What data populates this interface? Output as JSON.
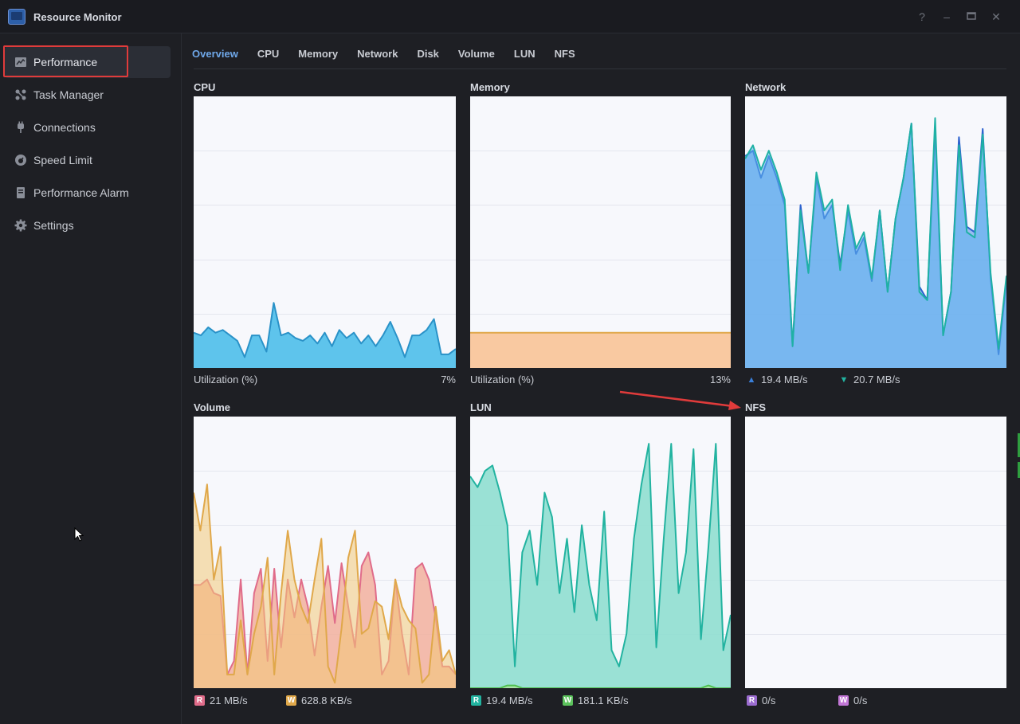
{
  "window": {
    "title": "Resource Monitor",
    "help_icon": "help-icon",
    "minimize_icon": "minimize-icon",
    "maximize_icon": "maximize-icon",
    "close_icon": "close-icon"
  },
  "sidebar": {
    "items": [
      {
        "label": "Performance",
        "icon": "performance-icon",
        "active": true
      },
      {
        "label": "Task Manager",
        "icon": "task-manager-icon"
      },
      {
        "label": "Connections",
        "icon": "connections-icon"
      },
      {
        "label": "Speed Limit",
        "icon": "speed-limit-icon"
      },
      {
        "label": "Performance Alarm",
        "icon": "alarm-icon"
      },
      {
        "label": "Settings",
        "icon": "gear-icon"
      }
    ]
  },
  "tabs": [
    "Overview",
    "CPU",
    "Memory",
    "Network",
    "Disk",
    "Volume",
    "LUN",
    "NFS"
  ],
  "panels": {
    "cpu": {
      "title": "CPU",
      "caption": "Utilization  (%)",
      "value": "7%"
    },
    "memory": {
      "title": "Memory",
      "caption": "Utilization  (%)",
      "value": "13%"
    },
    "network": {
      "title": "Network",
      "up": "19.4 MB/s",
      "down": "20.7 MB/s"
    },
    "volume": {
      "title": "Volume",
      "r_badge": "R",
      "r": "21 MB/s",
      "w_badge": "W",
      "w": "628.8 KB/s"
    },
    "lun": {
      "title": "LUN",
      "r_badge": "R",
      "r": "19.4 MB/s",
      "w_badge": "W",
      "w": "181.1 KB/s"
    },
    "nfs": {
      "title": "NFS",
      "r_badge": "R",
      "r": "0/s",
      "w_badge": "W",
      "w": "0/s"
    }
  },
  "colors": {
    "accent": "#6fa8ea",
    "cpu": "#4fb3e0",
    "memory": "#f5b98a",
    "network_up": "#3a7fd9",
    "network_down": "#22b3a0",
    "volume_r": "#e06c8a",
    "volume_w": "#e0a84a",
    "lun_r": "#22b3a0",
    "lun_w": "#5cc25c",
    "nfs_r": "#9b6cd0",
    "nfs_w": "#c277d6",
    "highlight": "#e03b3b"
  },
  "chart_data": [
    {
      "type": "area",
      "name": "cpu",
      "ylim": [
        0,
        100
      ],
      "series": [
        {
          "values": [
            13,
            12,
            15,
            13,
            14,
            12,
            10,
            4,
            12,
            12,
            6,
            24,
            12,
            13,
            11,
            10,
            12,
            9,
            13,
            8,
            14,
            11,
            13,
            9,
            12,
            8,
            12,
            17,
            11,
            4,
            12,
            12,
            14,
            18,
            5,
            5,
            7
          ]
        }
      ]
    },
    {
      "type": "area",
      "name": "memory",
      "ylim": [
        0,
        100
      ],
      "series": [
        {
          "values": [
            13,
            13,
            13,
            13,
            13,
            13,
            13,
            13,
            13,
            13,
            13,
            13,
            13,
            13,
            13,
            13,
            13,
            13,
            13,
            13,
            13,
            13,
            13,
            13,
            13,
            13,
            13,
            13,
            13,
            13,
            13,
            13,
            13,
            13,
            13,
            13,
            13
          ]
        }
      ]
    },
    {
      "type": "area",
      "name": "network",
      "ylim": [
        0,
        100
      ],
      "series": [
        {
          "values": [
            78,
            80,
            70,
            78,
            70,
            60,
            8,
            60,
            35,
            70,
            55,
            60,
            38,
            58,
            42,
            48,
            32,
            58,
            28,
            55,
            70,
            90,
            30,
            25,
            88,
            12,
            28,
            85,
            52,
            50,
            88,
            33,
            5,
            32
          ]
        },
        {
          "values": [
            77,
            82,
            73,
            80,
            72,
            62,
            8,
            58,
            35,
            72,
            58,
            62,
            36,
            60,
            44,
            50,
            33,
            58,
            28,
            55,
            70,
            90,
            28,
            25,
            92,
            12,
            28,
            82,
            50,
            48,
            86,
            35,
            7,
            34
          ]
        }
      ]
    },
    {
      "type": "area",
      "name": "volume",
      "ylim": [
        0,
        100
      ],
      "series": [
        {
          "values": [
            38,
            38,
            40,
            35,
            34,
            5,
            10,
            40,
            5,
            35,
            44,
            10,
            44,
            15,
            40,
            26,
            40,
            30,
            12,
            30,
            45,
            24,
            46,
            30,
            15,
            45,
            50,
            38,
            5,
            10,
            40,
            20,
            5,
            44,
            46,
            40,
            26,
            8,
            8,
            5
          ]
        },
        {
          "values": [
            72,
            58,
            75,
            40,
            52,
            5,
            5,
            25,
            5,
            20,
            30,
            48,
            5,
            35,
            58,
            40,
            30,
            24,
            40,
            55,
            8,
            2,
            22,
            48,
            58,
            20,
            22,
            32,
            30,
            18,
            40,
            30,
            25,
            22,
            2,
            5,
            30,
            10,
            14,
            5
          ]
        }
      ]
    },
    {
      "type": "area",
      "name": "lun",
      "ylim": [
        0,
        100
      ],
      "series": [
        {
          "values": [
            78,
            74,
            80,
            82,
            72,
            60,
            8,
            50,
            58,
            38,
            72,
            63,
            35,
            55,
            28,
            60,
            38,
            25,
            65,
            14,
            8,
            20,
            55,
            75,
            90,
            15,
            55,
            90,
            35,
            50,
            88,
            18,
            52,
            90,
            14,
            27
          ]
        },
        {
          "values": [
            0,
            0,
            0,
            0,
            0,
            1,
            1,
            0,
            0,
            0,
            0,
            0,
            0,
            0,
            0,
            0,
            0,
            0,
            0,
            0,
            0,
            0,
            0,
            0,
            0,
            0,
            0,
            0,
            0,
            0,
            0,
            0,
            1,
            0,
            0,
            0
          ]
        }
      ]
    },
    {
      "type": "area",
      "name": "nfs",
      "ylim": [
        0,
        100
      ],
      "series": [
        {
          "values": []
        }
      ]
    }
  ]
}
